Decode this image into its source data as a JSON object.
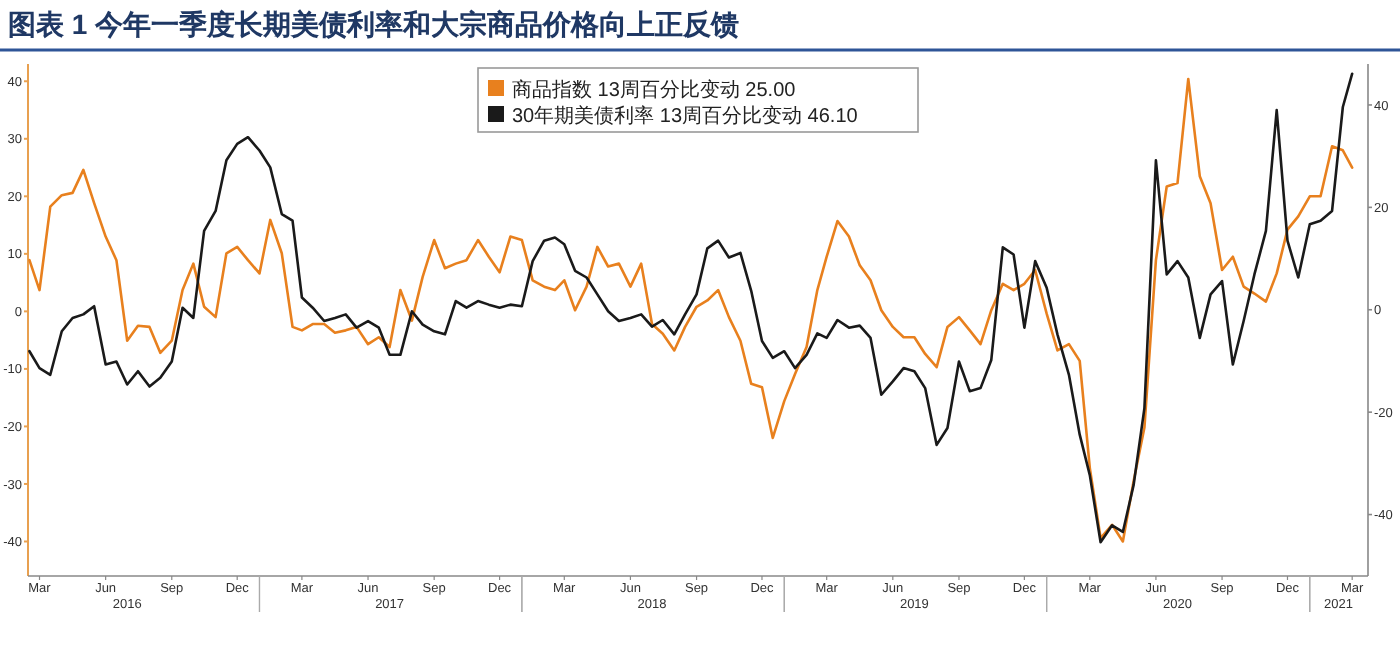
{
  "chart_data": {
    "type": "line",
    "title": "图表 1 今年一季度长期美债利率和大宗商品价格向上正反馈",
    "x": [
      "2016-02-16",
      "2016-03-01",
      "2016-03-16",
      "2016-04-01",
      "2016-04-16",
      "2016-05-01",
      "2016-05-16",
      "2016-06-01",
      "2016-06-16",
      "2016-07-01",
      "2016-07-16",
      "2016-08-01",
      "2016-08-16",
      "2016-09-01",
      "2016-09-16",
      "2016-10-01",
      "2016-10-16",
      "2016-11-01",
      "2016-11-16",
      "2016-12-01",
      "2016-12-16",
      "2017-01-01",
      "2017-01-16",
      "2017-02-01",
      "2017-02-16",
      "2017-03-01",
      "2017-03-16",
      "2017-04-01",
      "2017-04-16",
      "2017-05-01",
      "2017-05-16",
      "2017-06-01",
      "2017-06-16",
      "2017-07-01",
      "2017-07-16",
      "2017-08-01",
      "2017-08-16",
      "2017-09-01",
      "2017-09-16",
      "2017-10-01",
      "2017-10-16",
      "2017-11-01",
      "2017-11-16",
      "2017-12-01",
      "2017-12-16",
      "2018-01-01",
      "2018-01-16",
      "2018-02-01",
      "2018-02-16",
      "2018-03-01",
      "2018-03-16",
      "2018-04-01",
      "2018-04-16",
      "2018-05-01",
      "2018-05-16",
      "2018-06-01",
      "2018-06-16",
      "2018-07-01",
      "2018-07-16",
      "2018-08-01",
      "2018-08-16",
      "2018-09-01",
      "2018-09-16",
      "2018-10-01",
      "2018-10-16",
      "2018-11-01",
      "2018-11-16",
      "2018-12-01",
      "2018-12-16",
      "2019-01-01",
      "2019-01-16",
      "2019-02-01",
      "2019-02-16",
      "2019-03-01",
      "2019-03-16",
      "2019-04-01",
      "2019-04-16",
      "2019-05-01",
      "2019-05-16",
      "2019-06-01",
      "2019-06-16",
      "2019-07-01",
      "2019-07-16",
      "2019-08-01",
      "2019-08-16",
      "2019-09-01",
      "2019-09-16",
      "2019-10-01",
      "2019-10-16",
      "2019-11-01",
      "2019-11-16",
      "2019-12-01",
      "2019-12-16",
      "2020-01-01",
      "2020-01-16",
      "2020-02-01",
      "2020-02-16",
      "2020-03-01",
      "2020-03-16",
      "2020-04-01",
      "2020-04-16",
      "2020-05-01",
      "2020-05-16",
      "2020-06-01",
      "2020-06-16",
      "2020-07-01",
      "2020-07-16",
      "2020-08-01",
      "2020-08-16",
      "2020-09-01",
      "2020-09-16",
      "2020-10-01",
      "2020-10-16",
      "2020-11-01",
      "2020-11-16",
      "2020-12-01",
      "2020-12-16",
      "2021-01-01",
      "2021-01-16",
      "2021-02-01",
      "2021-02-16",
      "2021-03-01"
    ],
    "series": [
      {
        "name": "商品指数 13周百分比变动  25.00",
        "color": "#e8801e",
        "values": [
          8.9,
          3.7,
          18.2,
          20.2,
          20.6,
          24.6,
          18.8,
          13,
          8.9,
          -5.1,
          -2.5,
          -2.7,
          -7.2,
          -5.1,
          3.7,
          8.3,
          0.8,
          -1,
          10.1,
          11.2,
          8.9,
          6.6,
          15.9,
          10.1,
          -2.7,
          -3.3,
          -2.2,
          -2.2,
          -3.7,
          -3.3,
          -2.7,
          -5.7,
          -4.5,
          -6.2,
          3.7,
          -1.6,
          6,
          12.4,
          7.5,
          8.3,
          8.9,
          12.4,
          9.5,
          6.8,
          13,
          12.4,
          5.4,
          4.3,
          3.7,
          5.4,
          0.2,
          4.3,
          11.2,
          7.8,
          8.3,
          4.3,
          8.3,
          -2.2,
          -3.9,
          -6.8,
          -2.7,
          0.8,
          1.9,
          3.7,
          -1,
          -5.1,
          -12.6,
          -13.2,
          -22,
          -15.6,
          -10.9,
          -6.2,
          3.7,
          9.5,
          15.7,
          13,
          8,
          5.4,
          0.2,
          -2.7,
          -4.5,
          -4.5,
          -7.4,
          -9.7,
          -2.7,
          -1,
          -3.3,
          -5.7,
          0.2,
          4.8,
          3.7,
          4.8,
          7.2,
          -0.4,
          -6.8,
          -5.7,
          -8.6,
          -27.2,
          -39.4,
          -37.1,
          -40,
          -29.5,
          -20.2,
          8.9,
          21.7,
          22.3,
          40.4,
          23.5,
          18.8,
          7.2,
          9.5,
          4.3,
          3.1,
          1.7,
          6.6,
          14.2,
          16.5,
          20,
          20,
          28.7,
          28,
          25
        ]
      },
      {
        "name": "30年期美债利率 13周百分比变动  46.10",
        "color": "#1a1a1a",
        "axis": "y2",
        "values": [
          -8.1,
          -11.4,
          -12.7,
          -4.2,
          -1.6,
          -0.9,
          0.7,
          -10.7,
          -10.1,
          -14.6,
          -12,
          -15,
          -13.3,
          -10.1,
          0.4,
          -1.6,
          15.4,
          19.3,
          29.2,
          32.4,
          33.7,
          31.1,
          27.8,
          18.7,
          17.4,
          2.4,
          0.4,
          -2.2,
          -1.6,
          -0.9,
          -3.5,
          -2.2,
          -3.5,
          -8.8,
          -8.8,
          -0.3,
          -2.9,
          -4.2,
          -4.8,
          1.7,
          0.4,
          1.7,
          1,
          0.4,
          1,
          0.7,
          9.5,
          13.5,
          14.1,
          12.8,
          7.6,
          6.3,
          3,
          -0.3,
          -2.2,
          -1.6,
          -0.9,
          -3.3,
          -2,
          -4.8,
          -0.9,
          3,
          12,
          13.5,
          10.2,
          11.1,
          3.7,
          -6.1,
          -9.4,
          -8.1,
          -11.4,
          -8.8,
          -4.6,
          -5.5,
          -2,
          -3.5,
          -3.1,
          -5.5,
          -16.6,
          -14,
          -11.4,
          -12,
          -15.3,
          -26.4,
          -23.1,
          -10.1,
          -15.9,
          -15.3,
          -9.8,
          12.2,
          10.8,
          -3.5,
          9.5,
          4.3,
          -4.8,
          -12.7,
          -24.4,
          -32.3,
          -45.4,
          -42.1,
          -43.4,
          -34.2,
          -19.2,
          29.2,
          6.9,
          9.5,
          6.3,
          -5.5,
          3,
          5.6,
          -10.7,
          -2.2,
          6.9,
          15.4,
          39,
          13.5,
          6.3,
          16.7,
          17.4,
          19.3,
          39.6,
          46.1
        ]
      }
    ],
    "xlim": [
      "2016-02-14",
      "2021-03-23"
    ],
    "xticks": [
      {
        "value": "2016-03-01",
        "label": "Mar"
      },
      {
        "value": "2016-06-01",
        "label": "Jun"
      },
      {
        "value": "2016-09-01",
        "label": "Sep"
      },
      {
        "value": "2016-12-01",
        "label": "Dec"
      },
      {
        "value": "2017-03-01",
        "label": "Mar"
      },
      {
        "value": "2017-06-01",
        "label": "Jun"
      },
      {
        "value": "2017-09-01",
        "label": "Sep"
      },
      {
        "value": "2017-12-01",
        "label": "Dec"
      },
      {
        "value": "2018-03-01",
        "label": "Mar"
      },
      {
        "value": "2018-06-01",
        "label": "Jun"
      },
      {
        "value": "2018-09-01",
        "label": "Sep"
      },
      {
        "value": "2018-12-01",
        "label": "Dec"
      },
      {
        "value": "2019-03-01",
        "label": "Mar"
      },
      {
        "value": "2019-06-01",
        "label": "Jun"
      },
      {
        "value": "2019-09-01",
        "label": "Sep"
      },
      {
        "value": "2019-12-01",
        "label": "Dec"
      },
      {
        "value": "2020-03-01",
        "label": "Mar"
      },
      {
        "value": "2020-06-01",
        "label": "Jun"
      },
      {
        "value": "2020-09-01",
        "label": "Sep"
      },
      {
        "value": "2020-12-01",
        "label": "Dec"
      },
      {
        "value": "2021-03-01",
        "label": "Mar"
      }
    ],
    "x2lim": [
      "2016-02-14",
      "2021-03-23"
    ],
    "x2ticks": [
      {
        "value": "2016-07-01",
        "label": "2016"
      },
      {
        "value": "2017-07-01",
        "label": "2017"
      },
      {
        "value": "2018-07-01",
        "label": "2018"
      },
      {
        "value": "2019-07-01",
        "label": "2019"
      },
      {
        "value": "2020-07-01",
        "label": "2020"
      },
      {
        "value": "2021-02-10",
        "label": "2021"
      }
    ],
    "ylim": [
      -46,
      43
    ],
    "yticks": [
      -40,
      -30,
      -20,
      -10,
      0,
      10,
      20,
      30,
      40
    ],
    "y2lim": [
      -52,
      48
    ],
    "y2ticks": [
      -40,
      -20,
      0,
      20,
      40
    ],
    "legend": "top"
  }
}
